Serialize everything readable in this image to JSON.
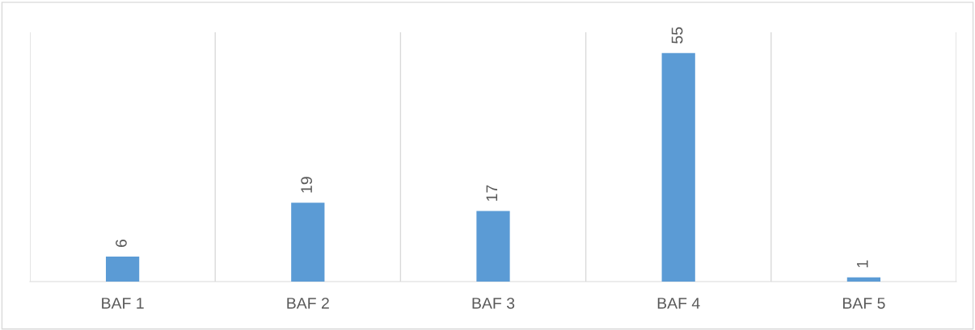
{
  "chart_data": {
    "type": "bar",
    "categories": [
      "BAF 1",
      "BAF 2",
      "BAF 3",
      "BAF 4",
      "BAF 5"
    ],
    "values": [
      6,
      19,
      17,
      55,
      1
    ],
    "color": "#5b9bd5",
    "ylim": [
      0,
      60
    ],
    "tick_labels": "x",
    "grid": "x",
    "data_labels": true
  }
}
